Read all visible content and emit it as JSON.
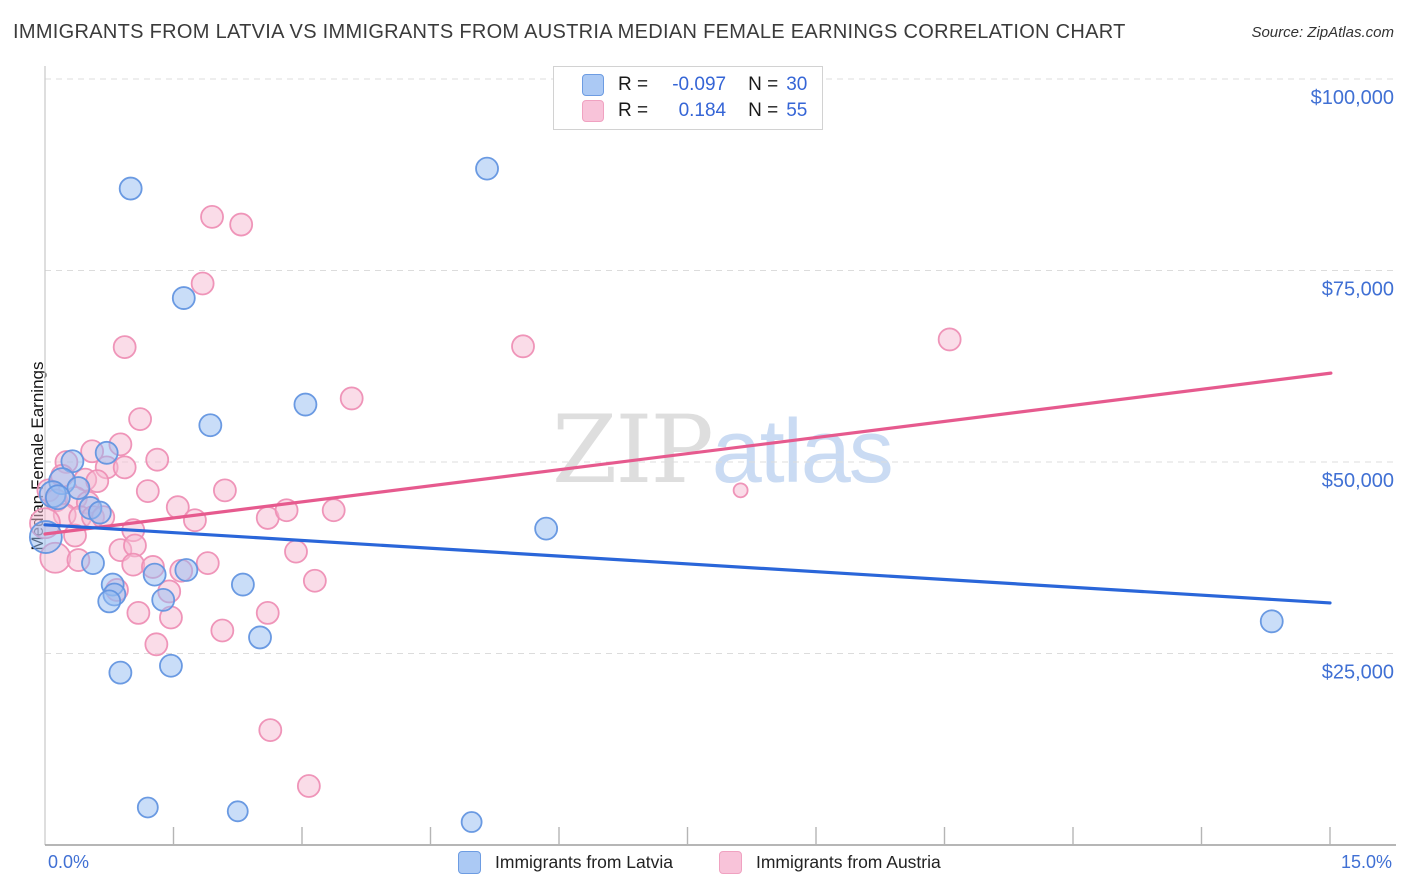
{
  "header": {
    "title": "IMMIGRANTS FROM LATVIA VS IMMIGRANTS FROM AUSTRIA MEDIAN FEMALE EARNINGS CORRELATION CHART",
    "source": "Source: ZipAtlas.com"
  },
  "watermark": {
    "zip": "ZIP",
    "atlas": "atlas"
  },
  "legend_box": {
    "rows": [
      {
        "series": "Immigrants from Latvia",
        "swatch": "blue",
        "r_label": "R =",
        "r_value": "-0.097",
        "n_label": "N =",
        "n_value": "30"
      },
      {
        "series": "Immigrants from Austria",
        "swatch": "pink",
        "r_label": "R =",
        "r_value": "0.184",
        "n_label": "N =",
        "n_value": "55"
      }
    ]
  },
  "chart_data": {
    "type": "scatter",
    "title": "Immigrants from Latvia vs Immigrants from Austria Median Female Earnings Correlation Chart",
    "ylabel": "Median Female Earnings",
    "xlabel": "",
    "grid": "horizontal-dashed",
    "x_axis": {
      "min": 0,
      "max": 15,
      "unit": "%",
      "min_label": "0.0%",
      "max_label": "15.0%",
      "tick_step_pct": 1.5
    },
    "y_axis": {
      "min": 0,
      "max": 101800,
      "unit": "USD",
      "gridline_values": [
        25000,
        50000,
        75000,
        100000
      ],
      "tick_labels": [
        "$25,000",
        "$50,000",
        "$75,000",
        "$100,000"
      ],
      "label_side": "right"
    },
    "series": [
      {
        "name": "Immigrants from Latvia",
        "R": -0.097,
        "N": 30,
        "marker_fill": "#93bbf2",
        "marker_stroke": "#6395e0",
        "trend_color": "#2a66d9",
        "trend": {
          "x1_pct": 0,
          "y1_usd": 41800,
          "x2_pct": 15.0,
          "y2_usd": 31600
        },
        "points": [
          [
            1.0,
            85700,
            11
          ],
          [
            5.16,
            88300,
            11
          ],
          [
            1.62,
            71400,
            11
          ],
          [
            1.93,
            54800,
            11
          ],
          [
            3.04,
            57500,
            11
          ],
          [
            0.72,
            51200,
            11
          ],
          [
            0.32,
            50100,
            11
          ],
          [
            0.2,
            47500,
            13
          ],
          [
            0.39,
            46600,
            11
          ],
          [
            0.09,
            45800,
            13
          ],
          [
            0.15,
            45400,
            12
          ],
          [
            0.53,
            44000,
            11
          ],
          [
            0.64,
            43400,
            11
          ],
          [
            0.01,
            40200,
            16
          ],
          [
            0.56,
            36800,
            11
          ],
          [
            1.28,
            35300,
            11
          ],
          [
            1.65,
            35900,
            11
          ],
          [
            0.79,
            34000,
            11
          ],
          [
            0.81,
            32700,
            11
          ],
          [
            0.75,
            31800,
            11
          ],
          [
            1.38,
            32000,
            11
          ],
          [
            2.31,
            34000,
            11
          ],
          [
            0.88,
            22500,
            11
          ],
          [
            1.47,
            23400,
            11
          ],
          [
            2.51,
            27100,
            11
          ],
          [
            5.85,
            41300,
            11
          ],
          [
            14.32,
            29200,
            11
          ],
          [
            1.2,
            4900,
            10
          ],
          [
            2.25,
            4400,
            10
          ],
          [
            4.98,
            3000,
            10
          ]
        ]
      },
      {
        "name": "Immigrants from Austria",
        "R": 0.184,
        "N": 55,
        "marker_fill": "#f6b9d2",
        "marker_stroke": "#ee8fb5",
        "trend_color": "#e65a8e",
        "trend": {
          "x1_pct": 0,
          "y1_usd": 40600,
          "x2_pct": 15.01,
          "y2_usd": 61600
        },
        "points": [
          [
            1.95,
            82000,
            11
          ],
          [
            2.29,
            81000,
            11
          ],
          [
            1.84,
            73300,
            11
          ],
          [
            0.93,
            65000,
            11
          ],
          [
            5.58,
            65100,
            11
          ],
          [
            10.56,
            66000,
            11
          ],
          [
            3.58,
            58300,
            11
          ],
          [
            1.11,
            55600,
            11
          ],
          [
            0.55,
            51400,
            11
          ],
          [
            0.88,
            52300,
            11
          ],
          [
            1.31,
            50300,
            11
          ],
          [
            0.25,
            50000,
            11
          ],
          [
            0.72,
            49300,
            11
          ],
          [
            0.93,
            49300,
            11
          ],
          [
            0.47,
            47700,
            11
          ],
          [
            0.61,
            47500,
            11
          ],
          [
            1.2,
            46200,
            11
          ],
          [
            0.04,
            46300,
            11
          ],
          [
            2.1,
            46300,
            11
          ],
          [
            0.13,
            45000,
            11
          ],
          [
            0.36,
            45300,
            11
          ],
          [
            0.5,
            44700,
            11
          ],
          [
            0.23,
            43100,
            11
          ],
          [
            0.41,
            42800,
            11
          ],
          [
            0.56,
            42800,
            11
          ],
          [
            0.68,
            42800,
            11
          ],
          [
            1.55,
            44100,
            11
          ],
          [
            2.6,
            42700,
            11
          ],
          [
            2.82,
            43700,
            11
          ],
          [
            3.37,
            43700,
            11
          ],
          [
            0.0,
            42000,
            15
          ],
          [
            1.03,
            41100,
            11
          ],
          [
            0.35,
            40400,
            11
          ],
          [
            0.12,
            37500,
            15
          ],
          [
            0.39,
            37200,
            11
          ],
          [
            0.88,
            38500,
            11
          ],
          [
            1.05,
            39100,
            11
          ],
          [
            1.03,
            36600,
            11
          ],
          [
            1.26,
            36300,
            11
          ],
          [
            1.59,
            35800,
            11
          ],
          [
            1.9,
            36800,
            11
          ],
          [
            1.45,
            33100,
            11
          ],
          [
            0.84,
            33300,
            11
          ],
          [
            1.09,
            30300,
            11
          ],
          [
            1.47,
            29700,
            11
          ],
          [
            1.3,
            26200,
            11
          ],
          [
            2.07,
            28000,
            11
          ],
          [
            2.6,
            30300,
            11
          ],
          [
            3.15,
            34500,
            11
          ],
          [
            2.93,
            38300,
            11
          ],
          [
            8.12,
            46300,
            7
          ],
          [
            2.63,
            15000,
            11
          ],
          [
            3.08,
            7700,
            11
          ],
          [
            1.75,
            42400,
            11
          ],
          [
            0.2,
            48200,
            11
          ]
        ]
      }
    ],
    "legend_position": "bottom"
  }
}
